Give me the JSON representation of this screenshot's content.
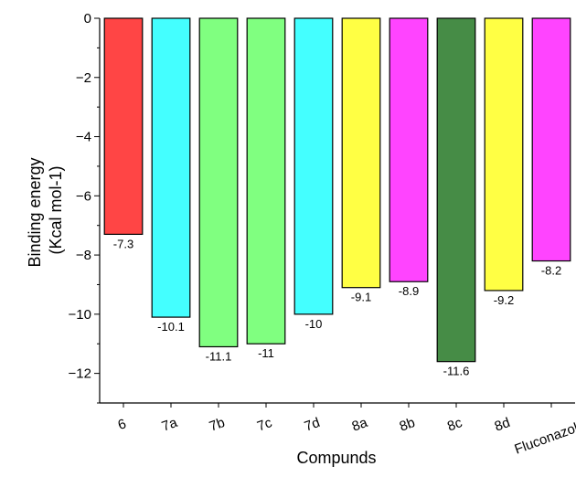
{
  "chart_data": {
    "type": "bar",
    "categories": [
      "6",
      "7a",
      "7b",
      "7c",
      "7d",
      "8a",
      "8b",
      "8c",
      "8d",
      "Fluconazole"
    ],
    "values": [
      -7.3,
      -10.1,
      -11.1,
      -11,
      -10,
      -9.1,
      -8.9,
      -11.6,
      -9.2,
      -8.2
    ],
    "data_labels": [
      "-7.3",
      "-10.1",
      "-11.1",
      "-11",
      "-10",
      "-9.1",
      "-8.9",
      "-11.6",
      "-9.2",
      "-8.2"
    ],
    "colors": [
      "#ff4545",
      "#44ffff",
      "#80ff80",
      "#80ff80",
      "#44ffff",
      "#ffff44",
      "#ff44ff",
      "#468c46",
      "#ffff44",
      "#ff44ff"
    ],
    "bar_edge_color": "#000000",
    "xlabel": "Compunds",
    "ylabel_lines": [
      "Binding energy",
      "(Kcal mol-1)"
    ],
    "ylim": [
      -13,
      0
    ],
    "y_ticks": [
      0,
      -2,
      -4,
      -6,
      -8,
      -10,
      -12
    ],
    "y_tick_labels": [
      "0",
      "−2",
      "−4",
      "−6",
      "−8",
      "−10",
      "−12"
    ],
    "grid": false,
    "legend": "none"
  }
}
